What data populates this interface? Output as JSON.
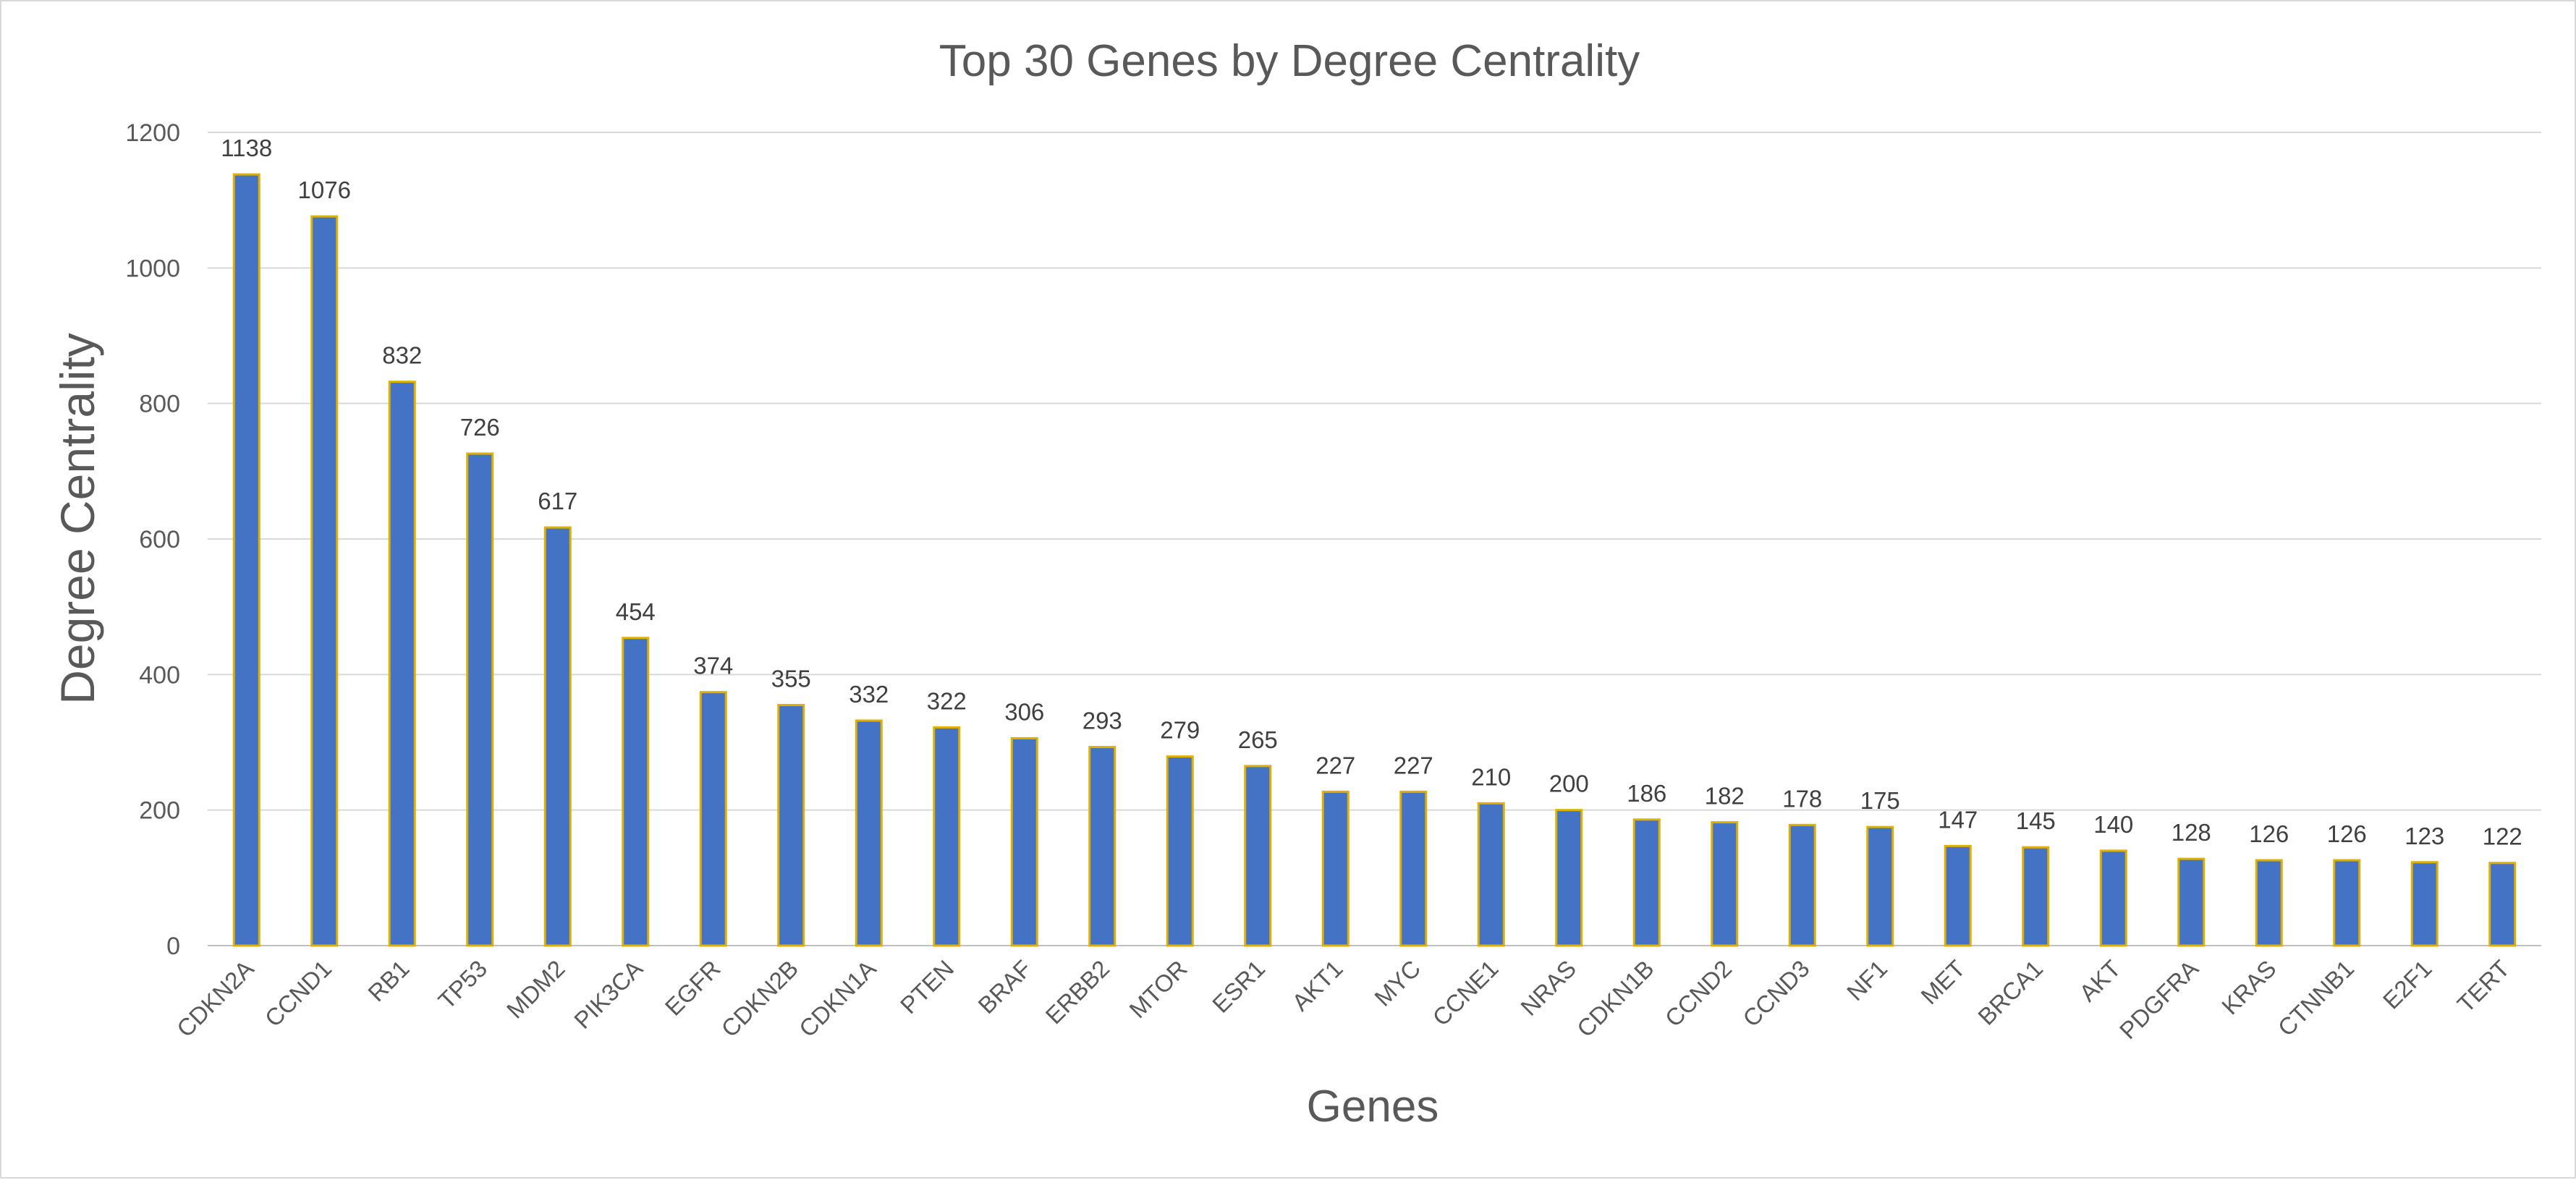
{
  "chart_data": {
    "type": "bar",
    "title": "Top 30 Genes by Degree Centrality",
    "xlabel": "Genes",
    "ylabel": "Degree Centrality",
    "ylim": [
      0,
      1200
    ],
    "yticks": [
      0,
      200,
      400,
      600,
      800,
      1000,
      1200
    ],
    "grid": true,
    "legend": "none",
    "colors": {
      "bar_fill": "#4472c4",
      "bar_outline": "#e0b000",
      "gridline": "#d9d9d9",
      "text": "#595959"
    },
    "categories": [
      "CDKN2A",
      "CCND1",
      "RB1",
      "TP53",
      "MDM2",
      "PIK3CA",
      "EGFR",
      "CDKN2B",
      "CDKN1A",
      "PTEN",
      "BRAF",
      "ERBB2",
      "MTOR",
      "ESR1",
      "AKT1",
      "MYC",
      "CCNE1",
      "NRAS",
      "CDKN1B",
      "CCND2",
      "CCND3",
      "NF1",
      "MET",
      "BRCA1",
      "AKT",
      "PDGFRA",
      "KRAS",
      "CTNNB1",
      "E2F1",
      "TERT"
    ],
    "values": [
      1138,
      1076,
      832,
      726,
      617,
      454,
      374,
      355,
      332,
      322,
      306,
      293,
      279,
      265,
      227,
      227,
      210,
      200,
      186,
      182,
      178,
      175,
      147,
      145,
      140,
      128,
      126,
      126,
      123,
      122
    ],
    "data_labels": [
      "1138",
      "1076",
      "832",
      "726",
      "617",
      "454",
      "374",
      "355",
      "332",
      "322",
      "306",
      "293",
      "279",
      "265",
      "227",
      "227",
      "210",
      "200",
      "186",
      "182",
      "178",
      "175",
      "147",
      "145",
      "140",
      "128",
      "126",
      "126",
      "123",
      "122"
    ]
  }
}
